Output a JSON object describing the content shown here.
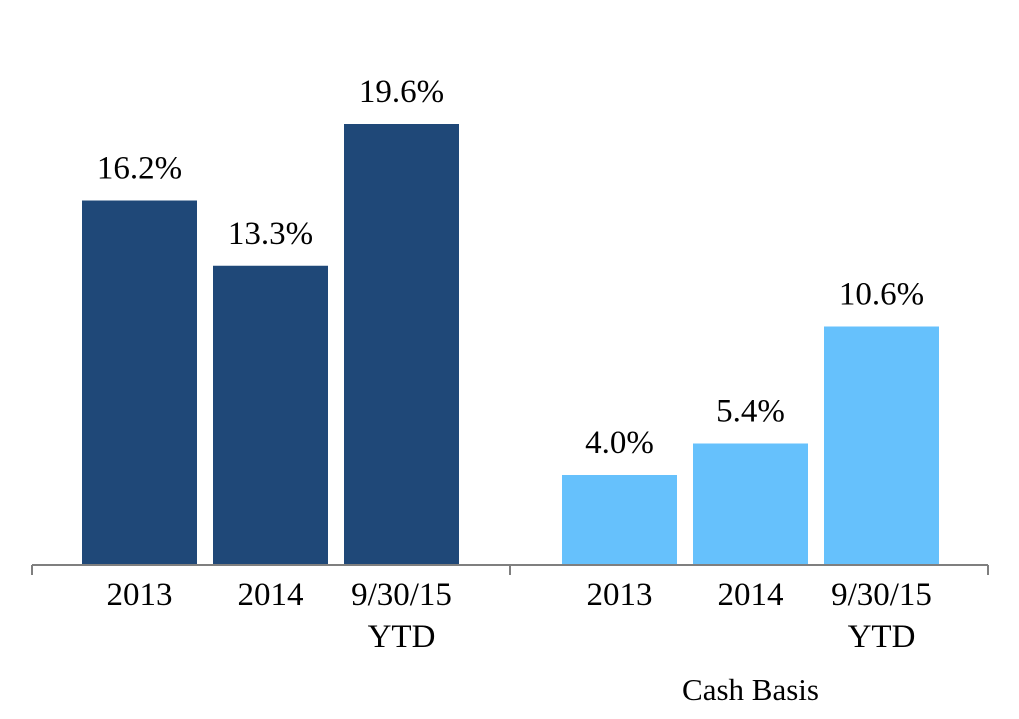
{
  "chart_data": {
    "type": "bar",
    "ylim": [
      0,
      22
    ],
    "grid": false,
    "legend": "none",
    "groups": [
      {
        "name": "",
        "color": "#1f4878",
        "categories": [
          [
            "2013"
          ],
          [
            "2014"
          ],
          [
            "9/30/15",
            "YTD"
          ]
        ],
        "values": [
          16.2,
          13.3,
          19.6
        ],
        "labels": [
          "16.2%",
          "13.3%",
          "19.6%"
        ]
      },
      {
        "name": "Cash Basis",
        "color": "#66c1fc",
        "categories": [
          [
            "2013"
          ],
          [
            "2014"
          ],
          [
            "9/30/15",
            "YTD"
          ]
        ],
        "values": [
          4.0,
          5.4,
          10.6
        ],
        "labels": [
          "4.0%",
          "5.4%",
          "10.6%"
        ]
      }
    ]
  }
}
